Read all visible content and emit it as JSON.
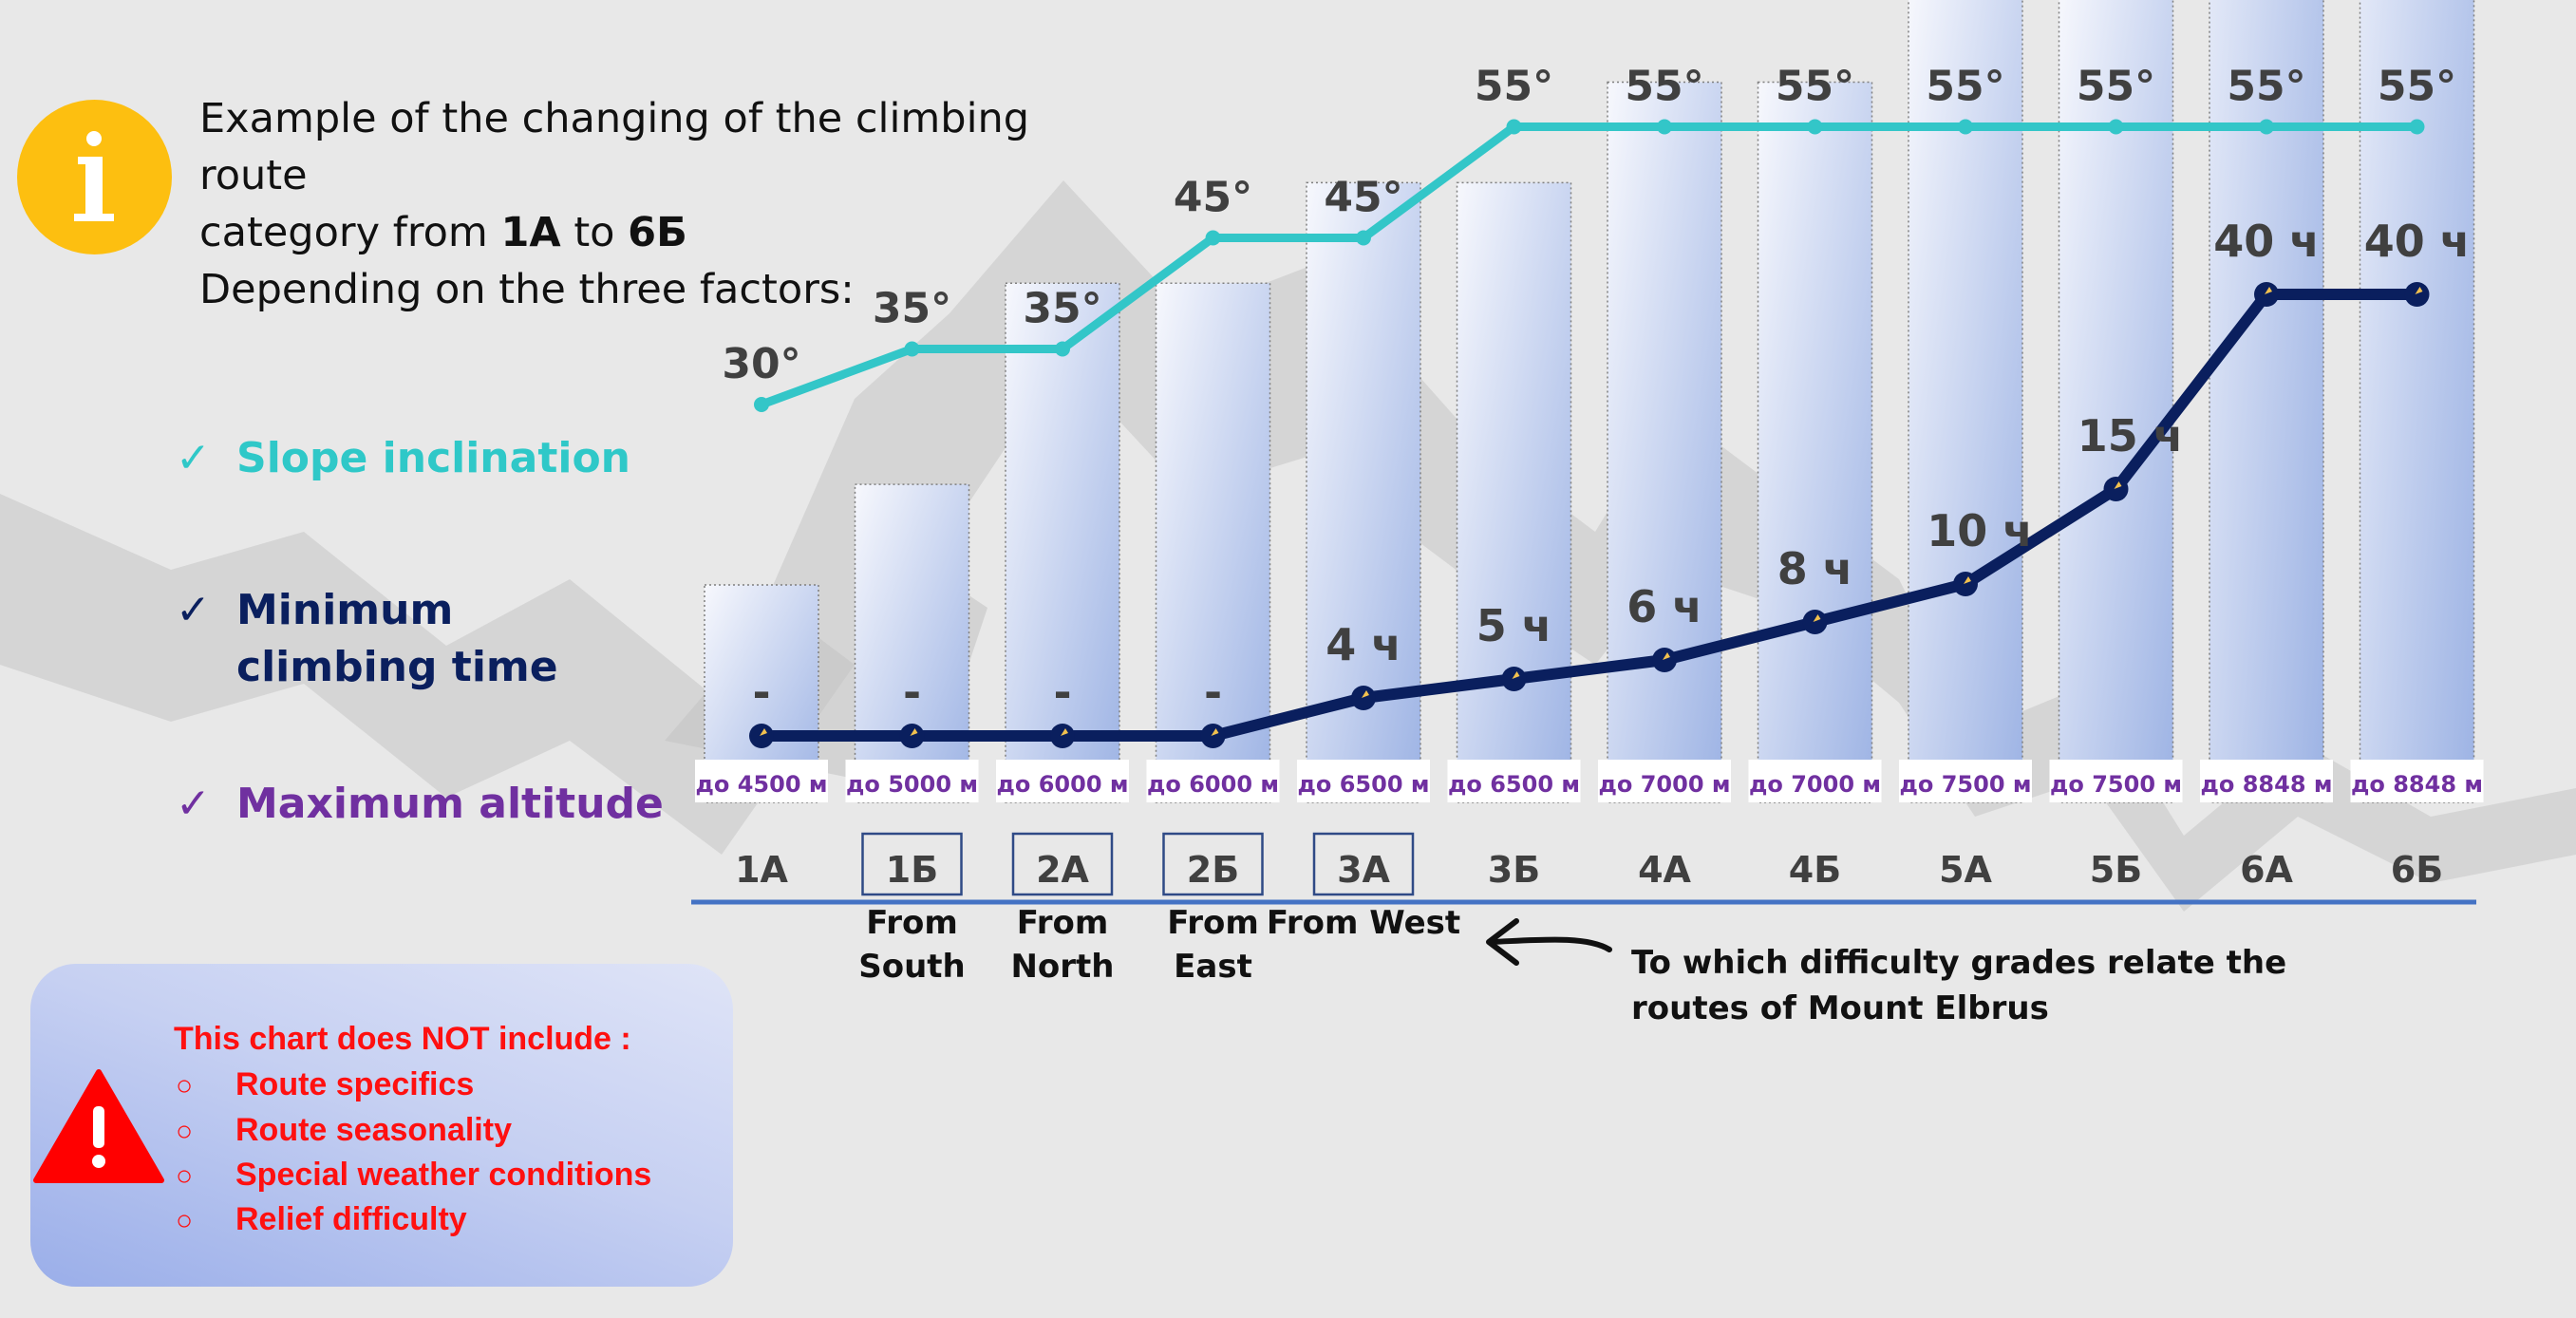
{
  "intro": {
    "line1": "Example of the changing of the climbing route",
    "line2_prefix": "category from ",
    "line2_from": "1А",
    "line2_mid": " to ",
    "line2_to": "6Б",
    "line3": "Depending on the three factors:"
  },
  "factors": [
    {
      "check": "✓",
      "label": "Slope inclination",
      "color": "#2fc8c8"
    },
    {
      "check": "✓",
      "label": "Minimum climbing time",
      "color": "#0a1f5e"
    },
    {
      "check": "✓",
      "label": "Maximum altitude",
      "color": "#7030a0"
    }
  ],
  "warning": {
    "title": "This chart does NOT include :",
    "bullet": "○",
    "items": [
      "Route specifics",
      "Route seasonality",
      "Special weather conditions",
      "Relief difficulty"
    ]
  },
  "note": "To which difficulty grades relate the routes of Mount Elbrus",
  "colors": {
    "slope": "#33c6c8",
    "time": "#0a1f5e",
    "altitude_text": "#7030a0",
    "axis": "#4472c4",
    "category_text": "#404040",
    "warning": "#ff1010",
    "info": "#fdbf10"
  },
  "chart_data": {
    "type": "line+bar",
    "categories": [
      "1А",
      "1Б",
      "2А",
      "2Б",
      "3А",
      "3Б",
      "4А",
      "4Б",
      "5А",
      "5Б",
      "6А",
      "6Б"
    ],
    "boxed_categories": [
      "1Б",
      "2А",
      "2Б",
      "3А"
    ],
    "elbrus_routes": [
      {
        "category": "1Б",
        "label": [
          "From",
          "South"
        ]
      },
      {
        "category": "2А",
        "label": [
          "From",
          "North"
        ]
      },
      {
        "category": "2Б",
        "label": [
          "From",
          "East"
        ]
      },
      {
        "category": "3А",
        "label": [
          "From West"
        ]
      }
    ],
    "series": [
      {
        "name": "Slope inclination",
        "unit": "°",
        "values": [
          30,
          35,
          35,
          45,
          45,
          55,
          55,
          55,
          55,
          55,
          55,
          55
        ],
        "labels": [
          "30°",
          "35°",
          "35°",
          "45°",
          "45°",
          "55°",
          "55°",
          "55°",
          "55°",
          "55°",
          "55°",
          "55°"
        ]
      },
      {
        "name": "Minimum climbing time",
        "unit": "ч",
        "values": [
          null,
          null,
          null,
          null,
          4,
          5,
          6,
          8,
          10,
          15,
          40,
          40
        ],
        "labels": [
          "-",
          "-",
          "-",
          "-",
          "4 ч",
          "5 ч",
          "6 ч",
          "8 ч",
          "10 ч",
          "15 ч",
          "40 ч",
          "40 ч"
        ]
      },
      {
        "name": "Maximum altitude",
        "unit": "м",
        "values": [
          4500,
          5000,
          6000,
          6000,
          6500,
          6500,
          7000,
          7000,
          7500,
          7500,
          8848,
          8848
        ],
        "labels": [
          "до 4500 м",
          "до 5000 м",
          "до 6000 м",
          "до 6000 м",
          "до 6500 м",
          "до 6500 м",
          "до 7000 м",
          "до 7000 м",
          "до 7500 м",
          "до 7500 м",
          "до 8848 м",
          "до 8848 м"
        ]
      }
    ],
    "grid": false,
    "legend": "left"
  }
}
